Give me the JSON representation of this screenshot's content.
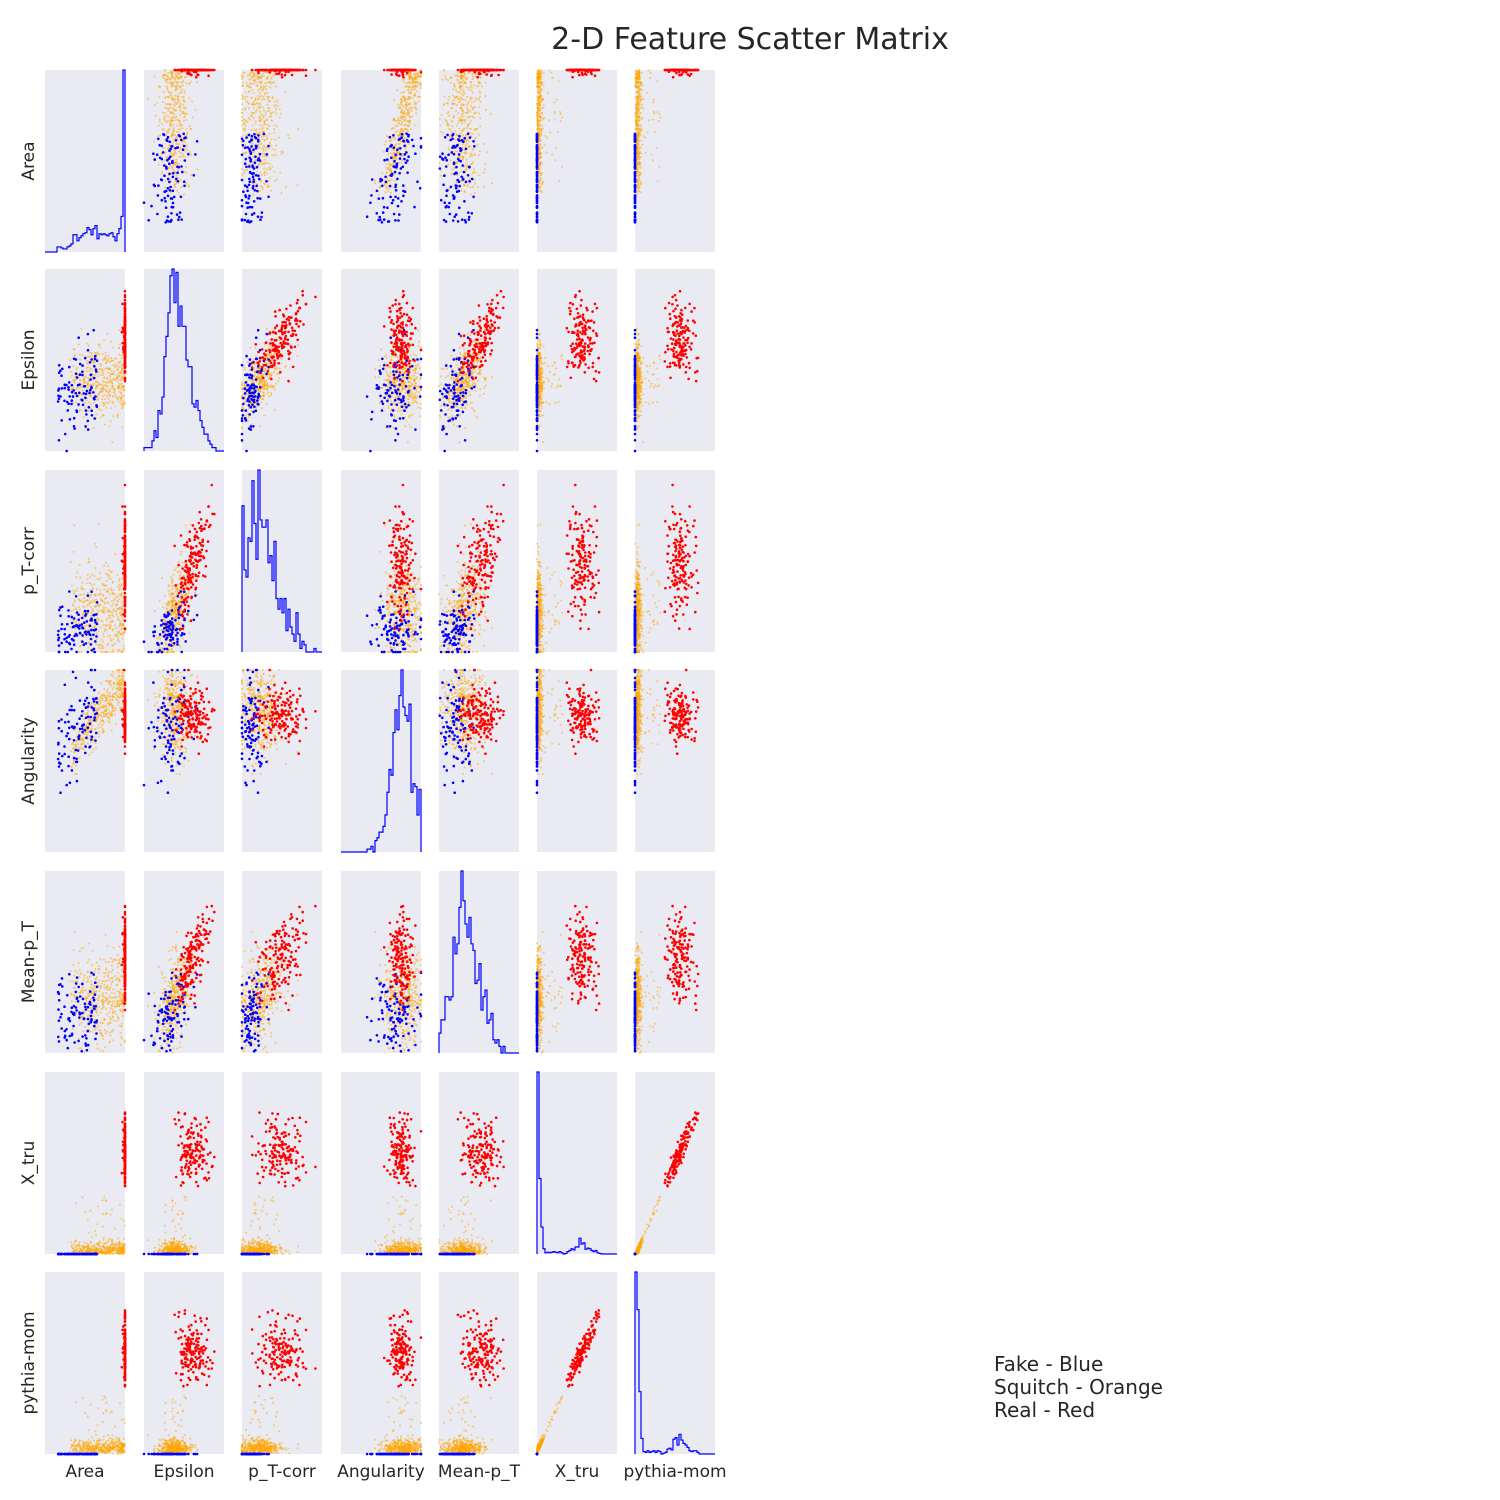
{
  "chart_data": {
    "type": "scatter",
    "title": "2-D Feature Scatter Matrix",
    "variables": [
      "Area",
      "Epsilon",
      "p_T-corr",
      "Angularity",
      "Mean-p_T",
      "X_tru",
      "pythia-mom"
    ],
    "diagonal": "histogram",
    "off_diagonal": "scatter",
    "grid": false,
    "classes": [
      {
        "name": "Fake",
        "color": "#0000ff",
        "count": 100
      },
      {
        "name": "Squitch",
        "color": "#ffa500",
        "count": 420
      },
      {
        "name": "Real",
        "color": "#ff0000",
        "count": 160
      }
    ],
    "legend_text": [
      "Fake - Blue",
      "Squitch - Orange",
      "Real - Red"
    ],
    "legend_placement": "bottom-right",
    "panel_background": "#eaeaf2",
    "histogram_color": "#0000ff"
  }
}
